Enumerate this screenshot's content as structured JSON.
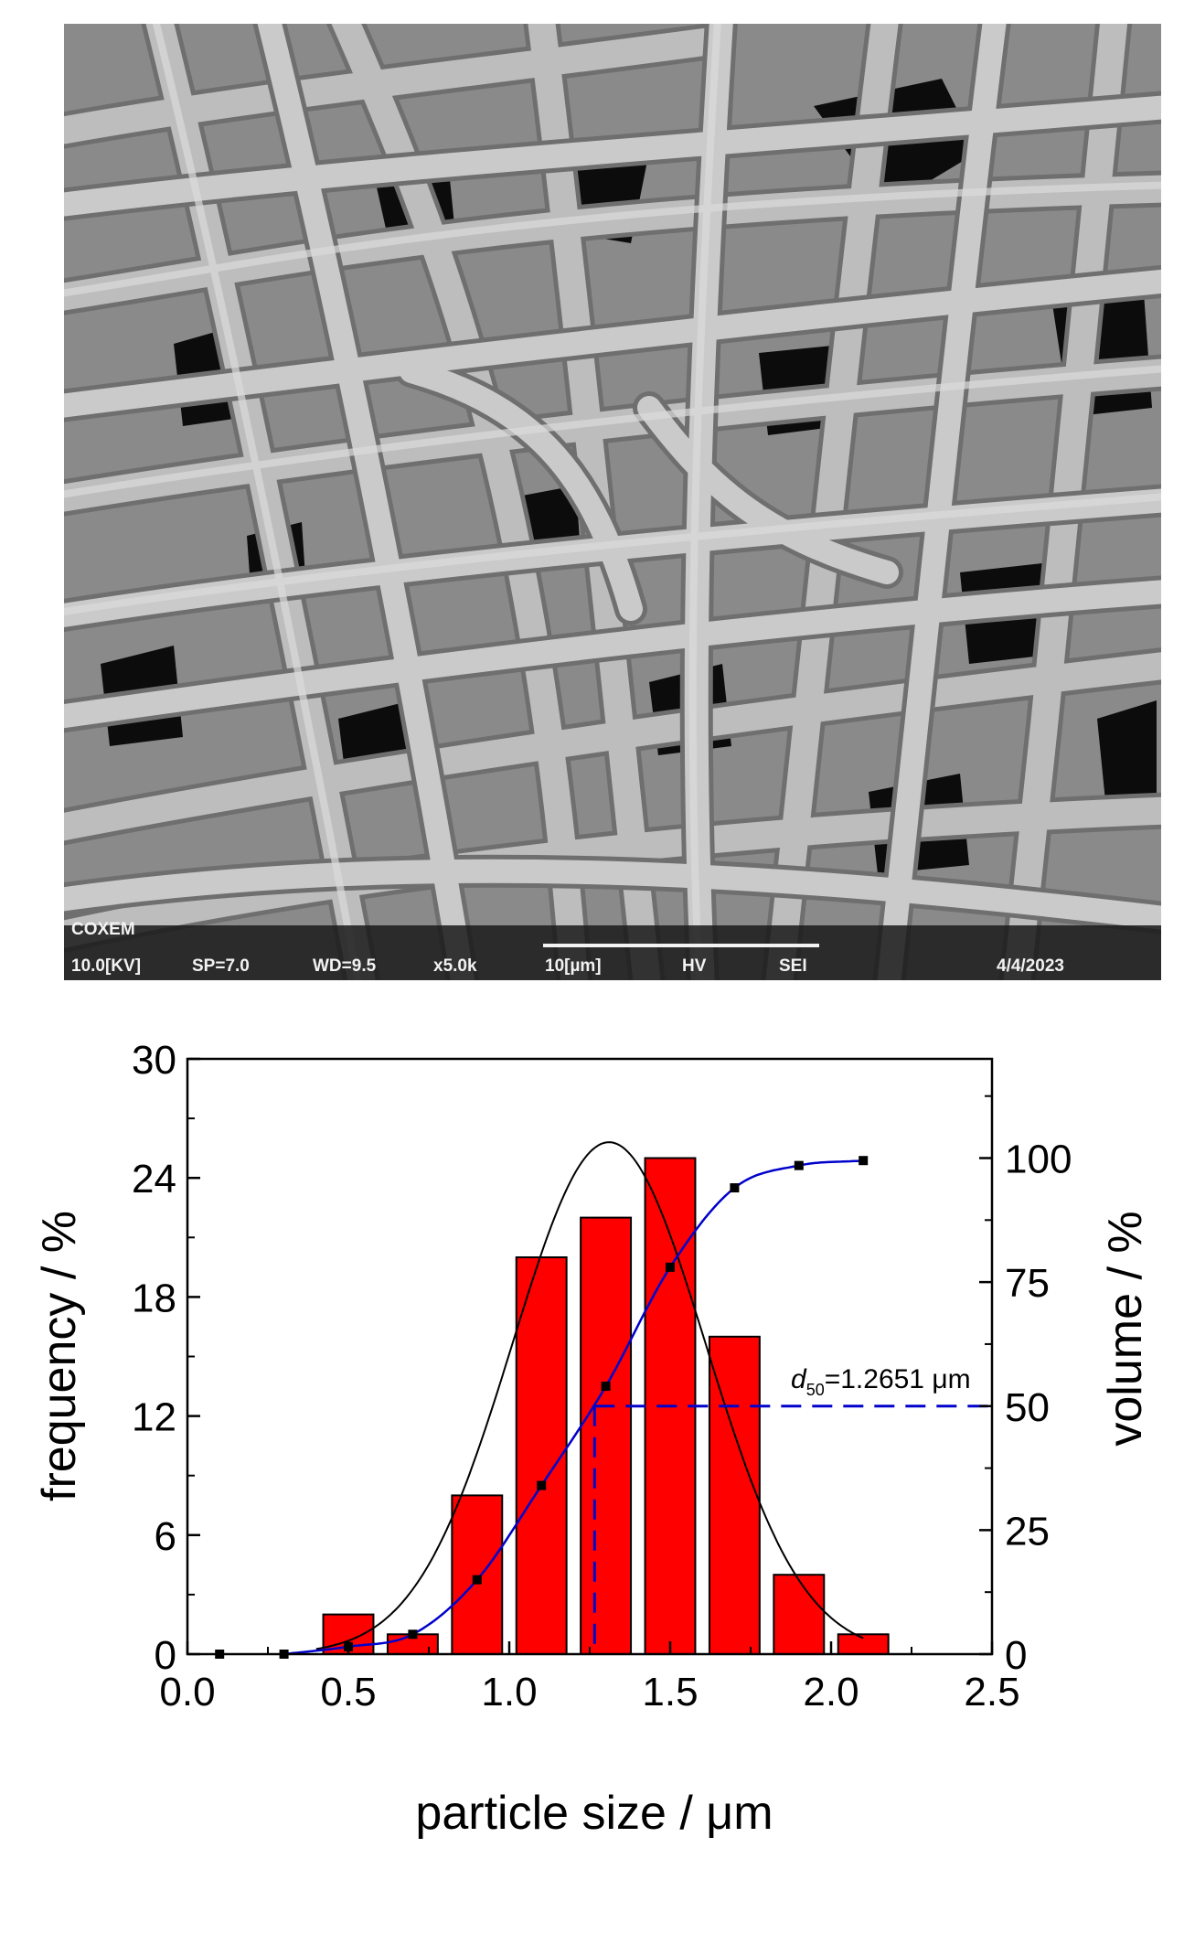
{
  "sem_image": {
    "background": "#8a8a8a",
    "fiber_color": "#bdbdbd",
    "void_color": "#0c0c0c",
    "databar": {
      "top_label": "COXEM",
      "voltage": "10.0[KV]",
      "spot": "SP=7.0",
      "wd": "WD=9.5",
      "mag": "x5.0k",
      "scale": "10[µm]",
      "vac": "HV",
      "detector": "SEI",
      "date": "4/4/2023"
    }
  },
  "chart_data": {
    "type": "bar",
    "x": [
      0.1,
      0.3,
      0.5,
      0.7,
      0.9,
      1.1,
      1.3,
      1.5,
      1.7,
      1.9,
      2.1
    ],
    "frequency": [
      0,
      0,
      2,
      1,
      8,
      20,
      22,
      25,
      16,
      4,
      1
    ],
    "cumulative_volume": [
      0,
      0,
      1.5,
      4,
      15,
      34,
      54,
      78,
      94,
      98.5,
      99.5
    ],
    "gaussian_fit": {
      "mean": 1.31,
      "sigma": 0.3,
      "peak": 25.8,
      "x_range": [
        0.4,
        2.1
      ]
    },
    "cumulative_fit": {
      "x_range": [
        0.4,
        2.1
      ]
    },
    "d50": {
      "value": 1.2651,
      "label_prefix": "d",
      "label_sub": "50",
      "label_value": "=1.2651 μm"
    },
    "xlabel": "particle size / μm",
    "ylabel_left": "frequency / %",
    "ylabel_right": "volume / %",
    "xlim": [
      0.0,
      2.5
    ],
    "ylim_left": [
      0,
      30
    ],
    "ylim_right": [
      0,
      120
    ],
    "xticks": [
      "0.0",
      "0.5",
      "1.0",
      "1.5",
      "2.0",
      "2.5"
    ],
    "yticks_left": [
      "0",
      "6",
      "12",
      "18",
      "24",
      "30"
    ],
    "yticks_right": [
      "0",
      "25",
      "50",
      "75",
      "100"
    ],
    "colors": {
      "bars": "#ff0000",
      "fit": "#000000",
      "cumulative": "#0000cc"
    },
    "grid": false
  }
}
